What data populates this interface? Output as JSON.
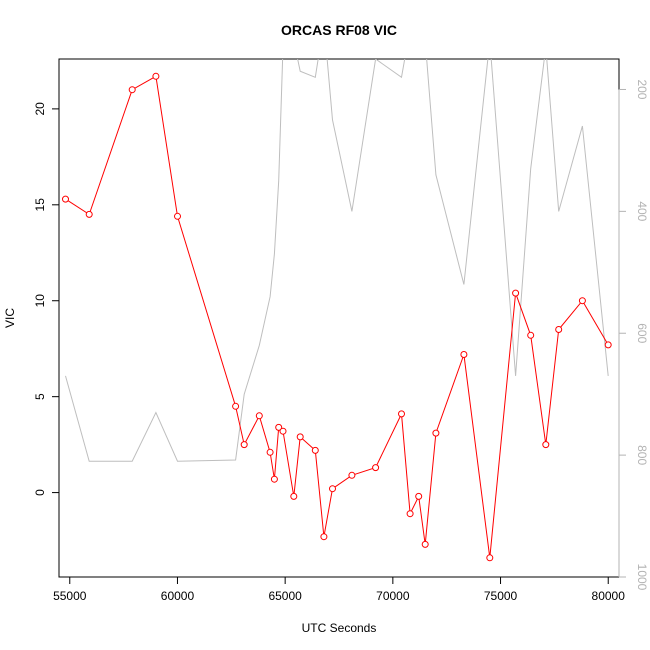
{
  "colors": {
    "primary_series": "#ff0000",
    "secondary_series": "#bebebe",
    "right_axis": "#b3b3b3"
  },
  "chart_data": {
    "type": "line",
    "title": "ORCAS RF08 VIC",
    "xlabel": "UTC Seconds",
    "ylabel": "VIC",
    "xlim": [
      54500,
      80500
    ],
    "ylim": [
      -4.4,
      22.6
    ],
    "x_ticks": [
      55000,
      60000,
      65000,
      70000,
      75000,
      80000
    ],
    "y_ticks": [
      0,
      5,
      10,
      15,
      20
    ],
    "right_axis": {
      "ylim": [
        1000,
        150
      ],
      "ticks": [
        200,
        400,
        600,
        800,
        1000
      ]
    },
    "grid": false,
    "series": [
      {
        "axis": "left",
        "markers": true,
        "x": [
          54800,
          55900,
          57900,
          59000,
          60000,
          62700,
          63100,
          63800,
          64300,
          64500,
          64700,
          64900,
          65400,
          65700,
          66400,
          66800,
          67200,
          68100,
          69200,
          70400,
          70800,
          71200,
          71500,
          72000,
          73300,
          74500,
          75700,
          76400,
          77100,
          77700,
          78800,
          80000
        ],
        "y": [
          15.3,
          14.5,
          21.0,
          21.7,
          14.4,
          4.5,
          2.5,
          4.0,
          2.1,
          0.7,
          3.4,
          3.2,
          -0.2,
          2.9,
          2.2,
          -2.3,
          0.2,
          0.9,
          1.3,
          4.1,
          -1.1,
          -0.2,
          -2.7,
          3.1,
          7.2,
          -3.4,
          10.4,
          8.2,
          2.5,
          8.5,
          10.0,
          7.7
        ]
      },
      {
        "axis": "right",
        "markers": false,
        "x": [
          54800,
          55900,
          57900,
          59000,
          60000,
          62700,
          63100,
          63800,
          64300,
          64500,
          64700,
          64900,
          65400,
          65700,
          66400,
          66800,
          67200,
          68100,
          69200,
          70400,
          70800,
          71200,
          71500,
          72000,
          73300,
          74500,
          75700,
          76400,
          77100,
          77700,
          78800,
          80000
        ],
        "y": [
          670,
          810,
          810,
          730,
          810,
          808,
          700,
          620,
          540,
          470,
          350,
          130,
          120,
          170,
          180,
          90,
          250,
          400,
          150,
          180,
          100,
          110,
          120,
          340,
          520,
          120,
          670,
          330,
          130,
          400,
          260,
          670
        ]
      }
    ]
  }
}
